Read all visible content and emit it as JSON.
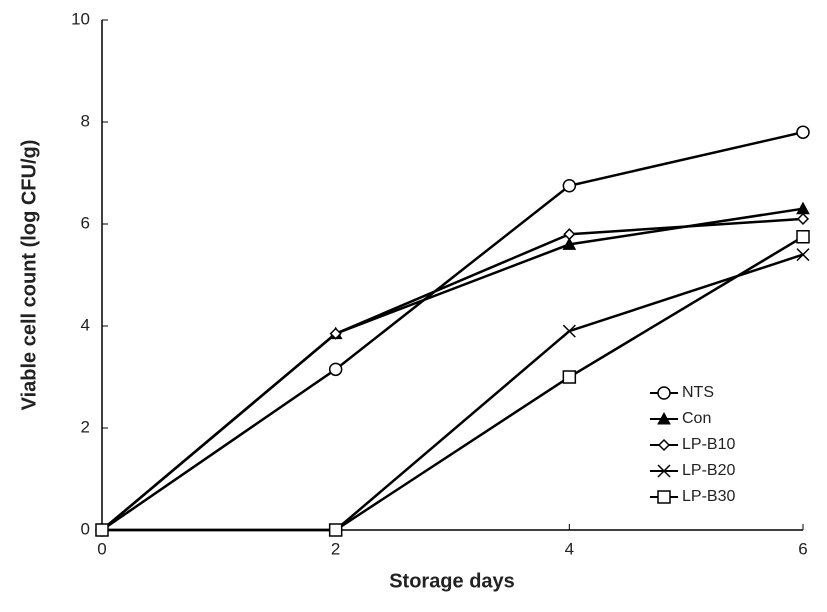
{
  "chart_data": {
    "type": "line",
    "xlabel": "Storage days",
    "ylabel": "Viable cell count (log CFU/g)",
    "x": [
      0,
      2,
      4,
      6
    ],
    "xlim": [
      0,
      6
    ],
    "xticks": [
      0,
      2,
      4,
      6
    ],
    "ylim": [
      0,
      10
    ],
    "yticks": [
      0,
      2,
      4,
      6,
      8,
      10
    ],
    "grid": false,
    "legend": "lower right",
    "series": [
      {
        "name": "NTS",
        "color": "#000000",
        "marker": "circle",
        "values": [
          0,
          3.15,
          6.75,
          7.8
        ]
      },
      {
        "name": "Con",
        "color": "#000000",
        "marker": "triangle",
        "values": [
          0,
          3.85,
          5.6,
          6.3
        ]
      },
      {
        "name": "LP-B10",
        "color": "#000000",
        "marker": "diamond",
        "values": [
          0,
          3.85,
          5.8,
          6.1
        ]
      },
      {
        "name": "LP-B20",
        "color": "#000000",
        "marker": "x",
        "values": [
          0,
          0,
          3.9,
          5.4
        ]
      },
      {
        "name": "LP-B30",
        "color": "#000000",
        "marker": "square",
        "values": [
          0,
          0,
          3.0,
          5.75
        ]
      }
    ]
  }
}
